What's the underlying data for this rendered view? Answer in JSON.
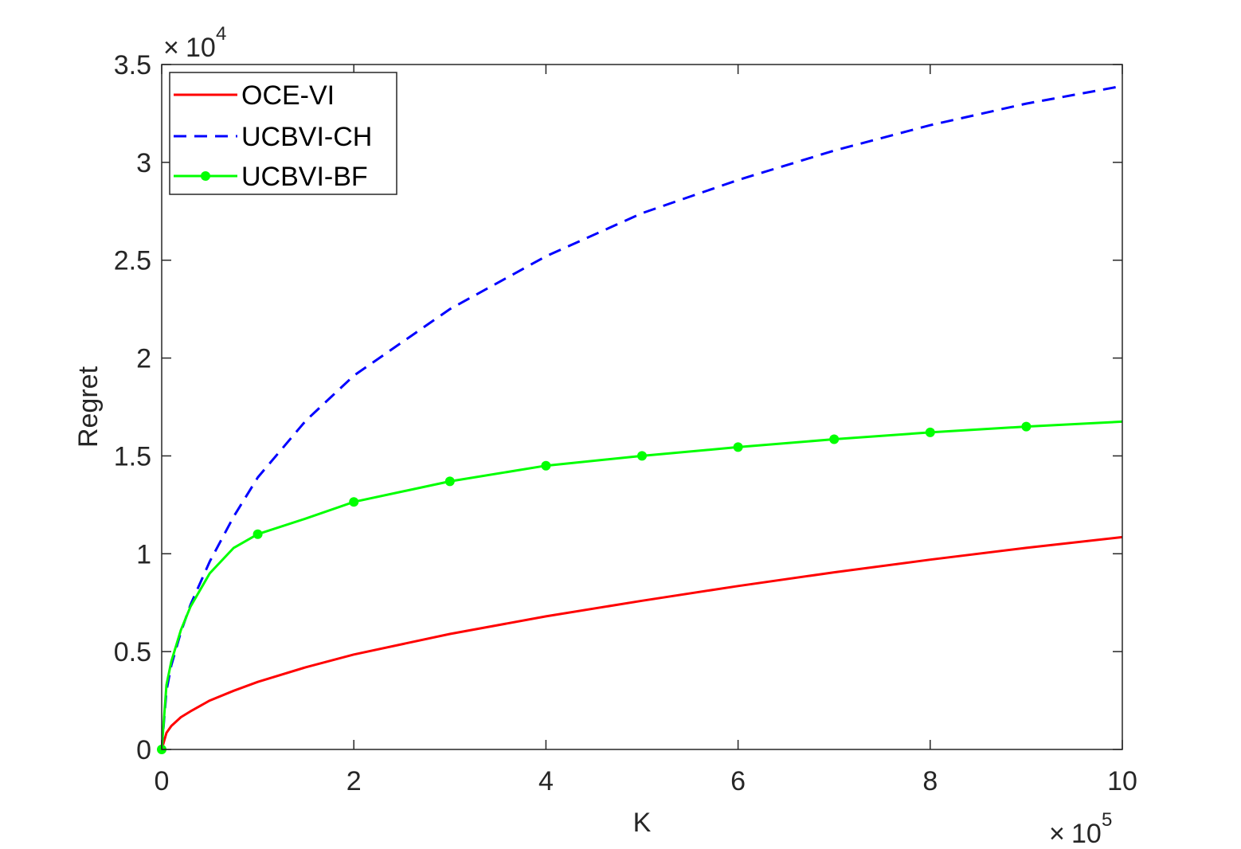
{
  "chart_data": {
    "type": "line",
    "xlabel": "K",
    "ylabel": "Regret",
    "x_multiplier": {
      "times": "×",
      "base": "10",
      "exp": "5"
    },
    "y_multiplier": {
      "times": "×",
      "base": "10",
      "exp": "4"
    },
    "xlim": [
      0,
      10
    ],
    "ylim": [
      0,
      3.5
    ],
    "xticks": [
      0,
      2,
      4,
      6,
      8,
      10
    ],
    "xtick_labels": [
      "0",
      "2",
      "4",
      "6",
      "8",
      "10"
    ],
    "yticks": [
      0,
      0.5,
      1,
      1.5,
      2,
      2.5,
      3,
      3.5
    ],
    "ytick_labels": [
      "0",
      "0.5",
      "1",
      "1.5",
      "2",
      "2.5",
      "3",
      "3.5"
    ],
    "grid": false,
    "legend_position": "top-left",
    "series": [
      {
        "name": "OCE-VI",
        "color": "#ff0000",
        "style": "solid",
        "marker": "none",
        "x": [
          0,
          0.05,
          0.1,
          0.2,
          0.3,
          0.5,
          0.75,
          1,
          1.5,
          2,
          3,
          4,
          5,
          6,
          7,
          8,
          9,
          10
        ],
        "y": [
          0,
          0.085,
          0.12,
          0.165,
          0.195,
          0.25,
          0.3,
          0.345,
          0.42,
          0.485,
          0.59,
          0.68,
          0.76,
          0.835,
          0.905,
          0.97,
          1.03,
          1.085
        ]
      },
      {
        "name": "UCBVI-CH",
        "color": "#0000ff",
        "style": "dashed",
        "marker": "none",
        "x": [
          0,
          0.05,
          0.1,
          0.2,
          0.3,
          0.5,
          0.75,
          1,
          1.5,
          2,
          3,
          4,
          5,
          6,
          7,
          8,
          9,
          10
        ],
        "y": [
          0,
          0.3,
          0.43,
          0.6,
          0.74,
          0.96,
          1.19,
          1.39,
          1.68,
          1.91,
          2.25,
          2.52,
          2.74,
          2.91,
          3.06,
          3.19,
          3.3,
          3.39
        ]
      },
      {
        "name": "UCBVI-BF",
        "color": "#00ff00",
        "style": "solid",
        "marker": "circle",
        "x": [
          0,
          0.05,
          0.1,
          0.2,
          0.3,
          0.5,
          0.75,
          1,
          1.5,
          2,
          3,
          4,
          5,
          6,
          7,
          8,
          9,
          10
        ],
        "y": [
          0,
          0.33,
          0.45,
          0.61,
          0.73,
          0.9,
          1.03,
          1.1,
          1.18,
          1.265,
          1.37,
          1.45,
          1.5,
          1.545,
          1.585,
          1.62,
          1.65,
          1.675
        ],
        "marker_x": [
          0,
          1,
          2,
          3,
          4,
          5,
          6,
          7,
          8,
          9
        ],
        "marker_y": [
          0,
          1.1,
          1.265,
          1.37,
          1.45,
          1.5,
          1.545,
          1.585,
          1.62,
          1.65
        ]
      }
    ]
  }
}
